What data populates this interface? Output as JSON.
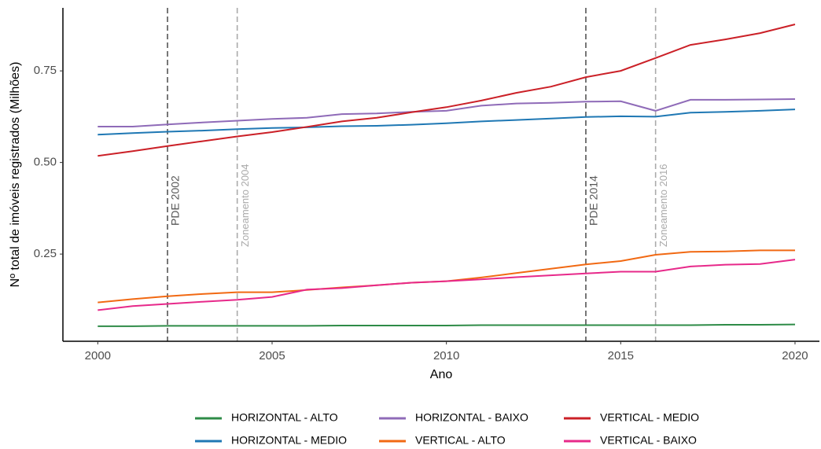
{
  "chart_data": {
    "type": "line",
    "x_label": "Ano",
    "y_label": "Nº total de imóveis registrados (Milhões)",
    "x": [
      2000,
      2001,
      2002,
      2003,
      2004,
      2005,
      2006,
      2007,
      2008,
      2009,
      2010,
      2011,
      2012,
      2013,
      2014,
      2015,
      2016,
      2017,
      2018,
      2019,
      2020
    ],
    "xlim": [
      1999.0,
      2020.7
    ],
    "xticks": [
      2000,
      2005,
      2010,
      2015,
      2020
    ],
    "ylim": [
      0.012,
      0.922
    ],
    "yticks": [
      0.25,
      {
        "value": 0.5,
        "label": "0.50"
      },
      0.75
    ],
    "grid": false,
    "legend": "bottom",
    "series": [
      {
        "name": "HORIZONTAL - ALTO",
        "color": "#2e8b47",
        "values": [
          0.053,
          0.053,
          0.054,
          0.054,
          0.054,
          0.054,
          0.054,
          0.055,
          0.055,
          0.055,
          0.055,
          0.056,
          0.056,
          0.056,
          0.056,
          0.056,
          0.056,
          0.056,
          0.057,
          0.057,
          0.058
        ]
      },
      {
        "name": "HORIZONTAL - MEDIO",
        "color": "#1f78b4",
        "values": [
          0.576,
          0.58,
          0.584,
          0.587,
          0.591,
          0.594,
          0.596,
          0.599,
          0.6,
          0.603,
          0.607,
          0.612,
          0.616,
          0.62,
          0.624,
          0.626,
          0.625,
          0.636,
          0.638,
          0.641,
          0.645
        ]
      },
      {
        "name": "HORIZONTAL - BAIXO",
        "color": "#8f6bb8",
        "values": [
          0.598,
          0.598,
          0.604,
          0.609,
          0.614,
          0.619,
          0.622,
          0.632,
          0.634,
          0.638,
          0.641,
          0.655,
          0.661,
          0.663,
          0.666,
          0.667,
          0.641,
          0.671,
          0.671,
          0.672,
          0.673
        ]
      },
      {
        "name": "VERTICAL - ALTO",
        "color": "#f16913",
        "values": [
          0.118,
          0.127,
          0.135,
          0.141,
          0.146,
          0.146,
          0.152,
          0.159,
          0.165,
          0.172,
          0.176,
          0.186,
          0.198,
          0.21,
          0.222,
          0.231,
          0.248,
          0.256,
          0.257,
          0.26,
          0.26
        ]
      },
      {
        "name": "VERTICAL - MEDIO",
        "color": "#cb2027",
        "values": [
          0.518,
          0.531,
          0.545,
          0.558,
          0.571,
          0.583,
          0.597,
          0.612,
          0.622,
          0.637,
          0.651,
          0.669,
          0.69,
          0.707,
          0.733,
          0.75,
          0.785,
          0.821,
          0.836,
          0.853,
          0.877
        ]
      },
      {
        "name": "VERTICAL - BAIXO",
        "color": "#e7298a",
        "values": [
          0.097,
          0.108,
          0.114,
          0.12,
          0.125,
          0.133,
          0.153,
          0.157,
          0.165,
          0.172,
          0.176,
          0.181,
          0.187,
          0.192,
          0.197,
          0.202,
          0.202,
          0.216,
          0.221,
          0.223,
          0.235
        ]
      }
    ],
    "reference_lines": [
      {
        "x": 2002,
        "label": "PDE 2002",
        "color": "#555555"
      },
      {
        "x": 2004,
        "label": "Zoneamento 2004",
        "color": "#aaaaaa"
      },
      {
        "x": 2014,
        "label": "PDE 2014",
        "color": "#555555"
      },
      {
        "x": 2016,
        "label": "Zoneamento 2016",
        "color": "#aaaaaa"
      }
    ]
  }
}
